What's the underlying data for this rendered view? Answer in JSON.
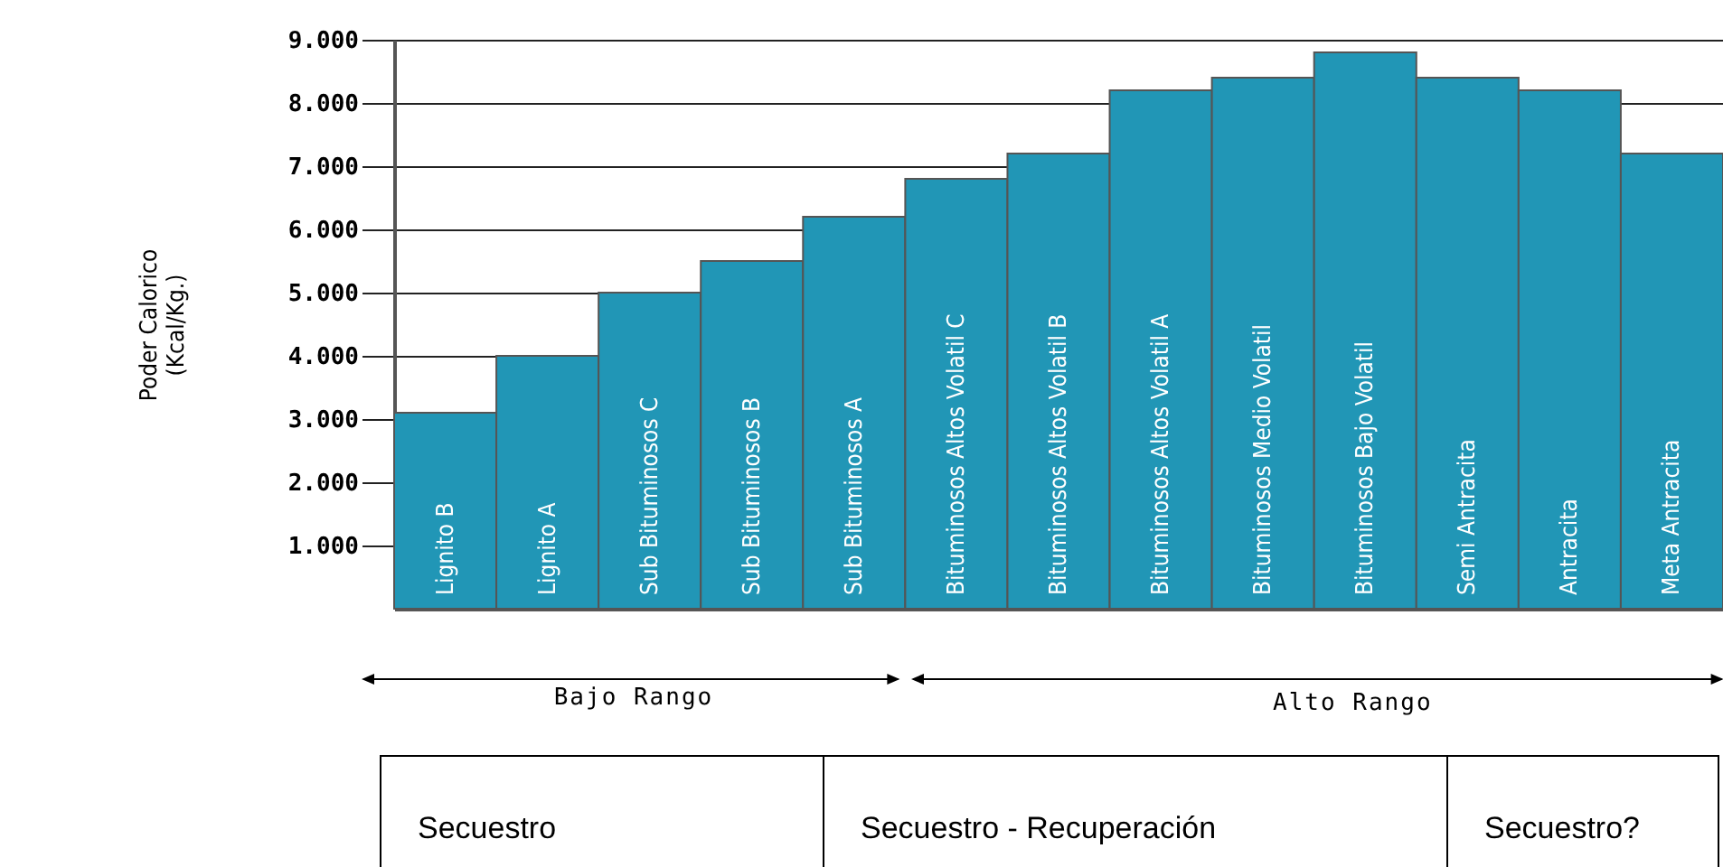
{
  "chart_data": {
    "type": "bar",
    "ylabel": "Poder Calorico\n(Kcal/Kg.)",
    "categories": [
      "Lignito B",
      "Lignito A",
      "Sub Bituminosos C",
      "Sub Bituminosos B",
      "Sub Bituminosos A",
      "Bituminosos Altos Volatil C",
      "Bituminosos Altos Volatil B",
      "Bituminosos Altos Volatil A",
      "Bituminosos Medio Volatil",
      "Bituminosos Bajo Volatil",
      "Semi Antracita",
      "Antracita",
      "Meta Antracita"
    ],
    "values": [
      3100,
      4000,
      5000,
      5500,
      6200,
      6800,
      7200,
      8200,
      8400,
      8800,
      8400,
      8200,
      7200
    ],
    "color": "#2196b6",
    "ylim": [
      0,
      9000
    ],
    "yticks": [
      {
        "value": 1000,
        "label": "1.000"
      },
      {
        "value": 2000,
        "label": "2.000"
      },
      {
        "value": 3000,
        "label": "3.000"
      },
      {
        "value": 4000,
        "label": "4.000"
      },
      {
        "value": 5000,
        "label": "5.000"
      },
      {
        "value": 6000,
        "label": "6.000"
      },
      {
        "value": 7000,
        "label": "7.000"
      },
      {
        "value": 8000,
        "label": "8.000"
      },
      {
        "value": 9000,
        "label": "9.000"
      }
    ],
    "grid": "y",
    "annotations": [
      "Bajo Rango",
      "Alto Rango",
      "Secuestro",
      "Secuestro - Recuperación",
      "Secuestro?"
    ]
  }
}
